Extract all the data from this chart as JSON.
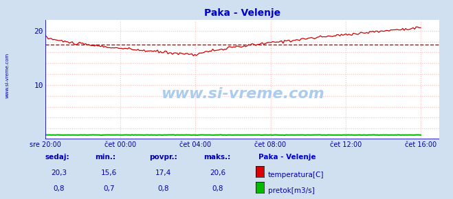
{
  "title": "Paka - Velenje",
  "title_color": "#0000cc",
  "bg_color": "#d0e0f0",
  "plot_bg_color": "#ffffff",
  "grid_color": "#ffbbbb",
  "grid_style": ":",
  "axis_color_x": "#0000cc",
  "axis_color_y": "#cc0000",
  "text_color": "#0000aa",
  "watermark": "www.si-vreme.com",
  "temp_color": "#cc0000",
  "flow_color": "#00bb00",
  "avg_line_color": "#cc0000",
  "avg_line_value": 17.4,
  "ylim": [
    0,
    22
  ],
  "yticks": [
    10,
    20
  ],
  "xlim_hours": 21,
  "xtick_labels": [
    "sre 20:00",
    "čet 00:00",
    "čet 04:00",
    "čet 08:00",
    "čet 12:00",
    "čet 16:00"
  ],
  "xtick_positions": [
    0,
    4,
    8,
    12,
    16,
    20
  ],
  "grid_yticks": [
    0,
    2,
    4,
    6,
    8,
    10,
    12,
    14,
    16,
    18,
    20
  ],
  "legend_title": "Paka - Velenje",
  "legend_items": [
    {
      "label": "temperatura[C]",
      "color": "#dd0000"
    },
    {
      "label": "pretok[m3/s]",
      "color": "#00bb00"
    }
  ],
  "stats_headers": [
    "sedaj:",
    "min.:",
    "povpr.:",
    "maks.:"
  ],
  "stats_temp": [
    "20,3",
    "15,6",
    "17,4",
    "20,6"
  ],
  "stats_flow": [
    "0,8",
    "0,7",
    "0,8",
    "0,8"
  ]
}
